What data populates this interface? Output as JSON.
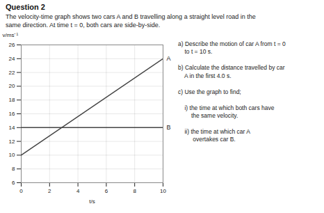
{
  "chart_data": {
    "type": "line",
    "title": "Question 2",
    "subtitle": "The velocity-time graph shows two cars A and B travelling along a straight level road in the\nsame direction. At time t = 0, both cars are side-by-side.",
    "x_label": "t/s",
    "y_label": "v/ms⁻¹",
    "x": [
      0,
      10
    ],
    "series": [
      {
        "name": "A",
        "color": "#444444",
        "values": [
          10,
          24
        ]
      },
      {
        "name": "B",
        "color": "#444444",
        "values": [
          14,
          14
        ]
      }
    ],
    "xlim": [
      0,
      10
    ],
    "ylim": [
      6,
      26
    ],
    "xticks": [
      0,
      2,
      4,
      6,
      8,
      10
    ],
    "yticks": [
      6,
      8,
      10,
      12,
      14,
      16,
      18,
      20,
      22,
      24,
      26
    ],
    "grid": true,
    "annotations": [
      "a) Describe the motion of car A from t = 0\n    to t = 10 s.",
      "b) Calculate the distance travelled by car\n    A in the first 4.0 s.",
      "c) Use the graph to find;",
      "    i) the time at which both cars have\n        the same velocity.",
      "    ii) the time at which car A\n         overtakes car B."
    ]
  }
}
